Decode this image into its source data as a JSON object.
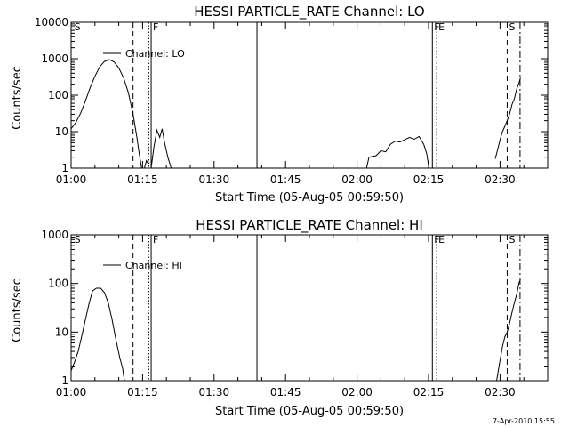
{
  "stamp": "7-Apr-2010 15:55",
  "chart_data": [
    {
      "type": "line",
      "title": "HESSI PARTICLE_RATE Channel: LO",
      "xlabel": "Start Time (05-Aug-05 00:59:50)",
      "ylabel": "Counts/sec",
      "yscale": "log",
      "ylim": [
        1,
        10000
      ],
      "xlim_minutes": [
        0,
        100
      ],
      "x_ticks": [
        {
          "t": 0,
          "label": "01:00"
        },
        {
          "t": 15,
          "label": "01:15"
        },
        {
          "t": 30,
          "label": "01:30"
        },
        {
          "t": 45,
          "label": "01:45"
        },
        {
          "t": 60,
          "label": "02:00"
        },
        {
          "t": 75,
          "label": "02:15"
        },
        {
          "t": 90,
          "label": "02:30"
        }
      ],
      "y_ticks": [
        {
          "v": 1,
          "label": "1"
        },
        {
          "v": 10,
          "label": "10"
        },
        {
          "v": 100,
          "label": "100"
        },
        {
          "v": 1000,
          "label": "1000"
        },
        {
          "v": 10000,
          "label": "10000"
        }
      ],
      "legend": {
        "label": "Channel: LO",
        "placement": "top-left"
      },
      "markers": [
        {
          "t": 0.3,
          "label": "S",
          "style": "text"
        },
        {
          "t": 13.0,
          "label": "",
          "style": "dashed"
        },
        {
          "t": 16.3,
          "label": "",
          "style": "dotted"
        },
        {
          "t": 16.8,
          "label": "F",
          "style": "solid"
        },
        {
          "t": 39.0,
          "label": "",
          "style": "solid"
        },
        {
          "t": 75.8,
          "label": "F",
          "style": "solid"
        },
        {
          "t": 76.7,
          "label": "E",
          "style": "dotted"
        },
        {
          "t": 91.5,
          "label": "S",
          "style": "dashed"
        },
        {
          "t": 94.2,
          "label": "",
          "style": "dashdot"
        }
      ],
      "series": [
        {
          "segments": [
            [
              [
                0,
                12
              ],
              [
                1,
                18
              ],
              [
                2,
                32
              ],
              [
                3,
                70
              ],
              [
                4,
                160
              ],
              [
                5,
                330
              ],
              [
                6,
                600
              ],
              [
                7,
                840
              ],
              [
                8,
                950
              ],
              [
                9,
                820
              ],
              [
                10,
                560
              ],
              [
                11,
                300
              ],
              [
                12,
                120
              ],
              [
                13,
                30
              ],
              [
                13.8,
                7
              ],
              [
                14.3,
                2.5
              ],
              [
                14.8,
                1
              ]
            ],
            [
              [
                15.4,
                1
              ],
              [
                15.8,
                1.6
              ],
              [
                16.2,
                1.3
              ]
            ],
            [
              [
                16.8,
                1
              ],
              [
                17.4,
                4
              ],
              [
                18,
                11
              ],
              [
                18.6,
                7
              ],
              [
                19.1,
                12
              ],
              [
                19.6,
                5
              ],
              [
                20.3,
                2
              ],
              [
                21,
                1
              ]
            ],
            [
              [
                62,
                1
              ],
              [
                62.5,
                2
              ],
              [
                64,
                2.2
              ],
              [
                65,
                3
              ],
              [
                66,
                2.8
              ],
              [
                67,
                4.5
              ],
              [
                68,
                5.5
              ],
              [
                69,
                5.2
              ],
              [
                70,
                6
              ],
              [
                71,
                7
              ],
              [
                72,
                6.2
              ],
              [
                73,
                7.4
              ],
              [
                74,
                4.5
              ],
              [
                74.6,
                2.5
              ],
              [
                75.1,
                1
              ]
            ],
            [
              [
                89,
                1.8
              ],
              [
                89.5,
                3.2
              ],
              [
                90,
                6
              ],
              [
                90.5,
                10
              ],
              [
                91,
                14
              ],
              [
                91.5,
                20
              ],
              [
                92,
                30
              ],
              [
                92.5,
                55
              ],
              [
                93,
                80
              ],
              [
                93.5,
                150
              ],
              [
                94,
                220
              ],
              [
                94.3,
                300
              ]
            ]
          ]
        }
      ]
    },
    {
      "type": "line",
      "title": "HESSI PARTICLE_RATE Channel: HI",
      "xlabel": "Start Time (05-Aug-05 00:59:50)",
      "ylabel": "Counts/sec",
      "yscale": "log",
      "ylim": [
        1,
        1000
      ],
      "xlim_minutes": [
        0,
        100
      ],
      "x_ticks": [
        {
          "t": 0,
          "label": "01:00"
        },
        {
          "t": 15,
          "label": "01:15"
        },
        {
          "t": 30,
          "label": "01:30"
        },
        {
          "t": 45,
          "label": "01:45"
        },
        {
          "t": 60,
          "label": "02:00"
        },
        {
          "t": 75,
          "label": "02:15"
        },
        {
          "t": 90,
          "label": "02:30"
        }
      ],
      "y_ticks": [
        {
          "v": 1,
          "label": "1"
        },
        {
          "v": 10,
          "label": "10"
        },
        {
          "v": 100,
          "label": "100"
        },
        {
          "v": 1000,
          "label": "1000"
        }
      ],
      "legend": {
        "label": "Channel: HI",
        "placement": "top-left"
      },
      "markers": [
        {
          "t": 0.3,
          "label": "S",
          "style": "text"
        },
        {
          "t": 13.0,
          "label": "",
          "style": "dashed"
        },
        {
          "t": 16.3,
          "label": "",
          "style": "dotted"
        },
        {
          "t": 16.8,
          "label": "F",
          "style": "solid"
        },
        {
          "t": 39.0,
          "label": "",
          "style": "solid"
        },
        {
          "t": 75.8,
          "label": "F",
          "style": "solid"
        },
        {
          "t": 76.7,
          "label": "E",
          "style": "dotted"
        },
        {
          "t": 91.5,
          "label": "S",
          "style": "dashed"
        },
        {
          "t": 94.2,
          "label": "",
          "style": "dashdot"
        }
      ],
      "series": [
        {
          "segments": [
            [
              [
                0,
                1.6
              ],
              [
                0.7,
                2.4
              ],
              [
                1.5,
                4
              ],
              [
                2.2,
                8
              ],
              [
                3,
                18
              ],
              [
                3.8,
                40
              ],
              [
                4.5,
                70
              ],
              [
                5.3,
                80
              ],
              [
                6.2,
                80
              ],
              [
                7,
                65
              ],
              [
                7.8,
                40
              ],
              [
                8.6,
                18
              ],
              [
                9.4,
                7
              ],
              [
                10.2,
                3
              ],
              [
                10.8,
                1.8
              ],
              [
                11.2,
                1
              ]
            ],
            [
              [
                89.3,
                1
              ],
              [
                89.8,
                2
              ],
              [
                90.5,
                5
              ],
              [
                91,
                8
              ],
              [
                91.5,
                10
              ],
              [
                92,
                15
              ],
              [
                92.5,
                25
              ],
              [
                93,
                40
              ],
              [
                93.5,
                60
              ],
              [
                94,
                105
              ],
              [
                94.3,
                120
              ]
            ]
          ]
        }
      ]
    }
  ]
}
